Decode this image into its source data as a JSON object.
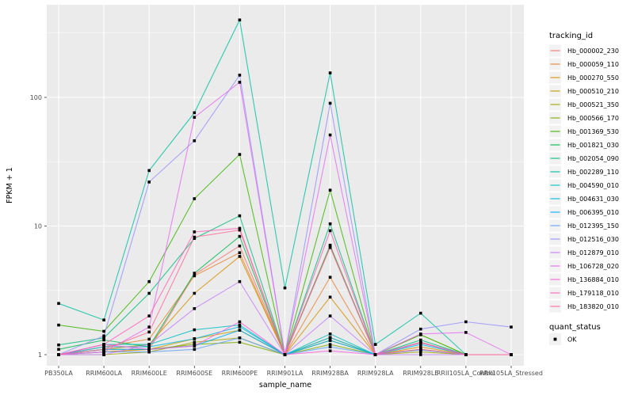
{
  "chart_data": {
    "type": "line",
    "title": "",
    "xlabel": "sample_name",
    "ylabel": "FPKM + 1",
    "legend_title": "tracking_id",
    "y_scale": "log10",
    "y_ticks": [
      1,
      10,
      100
    ],
    "y_minor_gridlines": [
      3.1623,
      31.623,
      316.23
    ],
    "ylim": [
      0.82,
      520
    ],
    "grid": true,
    "legend_position": "right",
    "panel_bg": "#EBEBEB",
    "grid_color": "#FFFFFF",
    "point_color": "#000000",
    "point_shape": "square",
    "tick_label_color": "#4D4D4D",
    "axis_title_color": "#000000",
    "legend_key_bg": "#F2F2F2",
    "categories": [
      "PB350LA",
      "RRIM600LA",
      "RRIM600LE",
      "RRIM600SE",
      "RRIM600PE",
      "RRIM901LA",
      "RRIM928BA",
      "RRIM928LA",
      "RRIM928LE",
      "RRII105LA_Control",
      "RRII105LA_Stressed"
    ],
    "series": [
      {
        "name": "Hb_000002_230",
        "color": "#F8766D",
        "values": [
          1.0,
          1.05,
          1.1,
          4.2,
          7.0,
          1.0,
          7.1,
          1.0,
          1.1,
          1.0,
          1.0
        ]
      },
      {
        "name": "Hb_000059_110",
        "color": "#EA8331",
        "values": [
          1.0,
          1.15,
          1.32,
          4.1,
          6.2,
          1.0,
          4.0,
          1.0,
          1.25,
          1.0,
          1.0
        ]
      },
      {
        "name": "Hb_000270_550",
        "color": "#D89000",
        "values": [
          1.0,
          1.1,
          1.2,
          3.0,
          5.8,
          1.0,
          2.8,
          1.0,
          1.15,
          1.0,
          1.0
        ]
      },
      {
        "name": "Hb_000510_210",
        "color": "#C09B00",
        "values": [
          1.0,
          1.05,
          1.1,
          1.33,
          1.55,
          1.0,
          1.36,
          1.0,
          1.1,
          1.0,
          1.0
        ]
      },
      {
        "name": "Hb_000521_350",
        "color": "#A3A500",
        "values": [
          1.0,
          1.0,
          1.05,
          1.25,
          1.35,
          1.0,
          1.29,
          1.0,
          1.05,
          1.0,
          1.0
        ]
      },
      {
        "name": "Hb_000566_170",
        "color": "#7CAE00",
        "values": [
          1.0,
          1.1,
          1.1,
          1.2,
          1.25,
          1.0,
          1.2,
          1.0,
          1.43,
          1.0,
          1.0
        ]
      },
      {
        "name": "Hb_001369_530",
        "color": "#39B600",
        "values": [
          1.7,
          1.52,
          3.7,
          16.3,
          36.0,
          1.0,
          19.0,
          1.0,
          1.43,
          1.0,
          1.0
        ]
      },
      {
        "name": "Hb_001821_030",
        "color": "#00BB4E",
        "values": [
          1.1,
          1.3,
          1.15,
          4.3,
          8.3,
          1.0,
          7.0,
          1.0,
          1.24,
          1.0,
          1.0
        ]
      },
      {
        "name": "Hb_002054_090",
        "color": "#00BF7D",
        "values": [
          1.19,
          1.35,
          3.0,
          8.0,
          12.0,
          1.0,
          10.4,
          1.0,
          1.3,
          1.0,
          1.0
        ]
      },
      {
        "name": "Hb_002289_110",
        "color": "#00C1A3",
        "values": [
          2.5,
          1.86,
          27.0,
          76.0,
          400.0,
          3.3,
          155.0,
          1.2,
          2.1,
          1.0,
          1.0
        ]
      },
      {
        "name": "Hb_004590_010",
        "color": "#00BFC4",
        "values": [
          1.0,
          1.2,
          1.2,
          1.56,
          1.7,
          1.0,
          1.45,
          1.0,
          1.24,
          1.0,
          1.0
        ]
      },
      {
        "name": "Hb_004631_030",
        "color": "#00BAE0",
        "values": [
          1.0,
          1.15,
          1.15,
          1.33,
          1.65,
          1.0,
          1.36,
          1.0,
          1.2,
          1.0,
          1.0
        ]
      },
      {
        "name": "Hb_006395_010",
        "color": "#00B0F6",
        "values": [
          1.0,
          1.1,
          1.1,
          1.17,
          1.55,
          1.0,
          1.29,
          1.0,
          1.09,
          1.0,
          1.0
        ]
      },
      {
        "name": "Hb_012395_150",
        "color": "#61A3FF",
        "values": [
          1.0,
          1.05,
          1.05,
          1.1,
          1.35,
          1.0,
          1.15,
          1.0,
          1.09,
          1.0,
          1.0
        ]
      },
      {
        "name": "Hb_012516_030",
        "color": "#9590FF",
        "values": [
          1.0,
          1.4,
          22.0,
          46.0,
          149.0,
          1.0,
          90.0,
          1.0,
          1.58,
          1.8,
          1.64
        ]
      },
      {
        "name": "Hb_012879_010",
        "color": "#C77CFF",
        "values": [
          1.0,
          1.0,
          1.2,
          2.28,
          3.7,
          1.0,
          2.0,
          1.0,
          1.0,
          1.0,
          1.0
        ]
      },
      {
        "name": "Hb_106728_020",
        "color": "#E76BF3",
        "values": [
          1.0,
          1.05,
          1.64,
          70.0,
          131.0,
          1.0,
          51.0,
          1.0,
          1.45,
          1.49,
          1.0
        ]
      },
      {
        "name": "Hb_136884_010",
        "color": "#FA62DB",
        "values": [
          1.0,
          1.2,
          1.1,
          1.17,
          1.8,
          1.0,
          1.07,
          1.0,
          1.24,
          1.0,
          1.0
        ]
      },
      {
        "name": "Hb_179118_010",
        "color": "#FF62BC",
        "values": [
          1.0,
          1.2,
          2.0,
          9.0,
          9.6,
          1.0,
          9.2,
          1.0,
          1.24,
          1.0,
          1.0
        ]
      },
      {
        "name": "Hb_183820_010",
        "color": "#FF6A98",
        "values": [
          1.0,
          1.1,
          1.5,
          8.2,
          9.3,
          1.0,
          6.8,
          1.0,
          1.1,
          1.0,
          1.0
        ]
      }
    ],
    "quant_legend": {
      "title": "quant_status",
      "items": [
        {
          "label": "OK",
          "marker": "black-square"
        }
      ]
    }
  }
}
